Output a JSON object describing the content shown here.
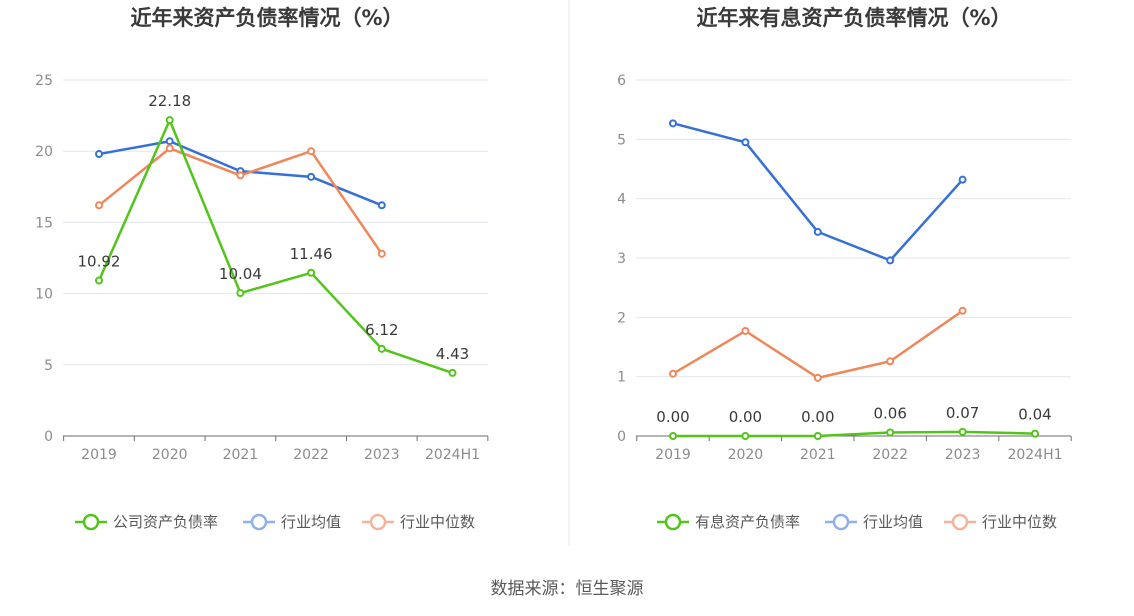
{
  "footer": {
    "source": "数据来源：恒生聚源"
  },
  "chart_data": [
    {
      "type": "line",
      "title": "近年来资产负债率情况（%）",
      "categories": [
        "2019",
        "2020",
        "2021",
        "2022",
        "2023",
        "2024H1"
      ],
      "ylim": [
        0,
        25
      ],
      "yticks": [
        0,
        5,
        10,
        15,
        20,
        25
      ],
      "grid": true,
      "legend_position": "bottom-center",
      "series": [
        {
          "name": "公司资产负债率",
          "color": "#52c41a",
          "show_labels": true,
          "values": [
            10.92,
            22.18,
            10.04,
            11.46,
            6.12,
            4.43
          ],
          "labels": [
            "10.92",
            "22.18",
            "10.04",
            "11.46",
            "6.12",
            "4.43"
          ]
        },
        {
          "name": "行业均值",
          "color": "#3470d8",
          "show_labels": false,
          "values": [
            19.8,
            20.7,
            18.6,
            18.2,
            16.2,
            null
          ]
        },
        {
          "name": "行业中位数",
          "color": "#f0875a",
          "show_labels": false,
          "values": [
            16.2,
            20.2,
            18.3,
            20.0,
            12.8,
            null
          ]
        }
      ]
    },
    {
      "type": "line",
      "title": "近年来有息资产负债率情况（%）",
      "categories": [
        "2019",
        "2020",
        "2021",
        "2022",
        "2023",
        "2024H1"
      ],
      "ylim": [
        0,
        6
      ],
      "yticks": [
        0,
        1,
        2,
        3,
        4,
        5,
        6
      ],
      "grid": true,
      "legend_position": "bottom-center",
      "series": [
        {
          "name": "有息资产负债率",
          "color": "#52c41a",
          "show_labels": true,
          "values": [
            0.0,
            0.0,
            0.0,
            0.06,
            0.07,
            0.04
          ],
          "labels": [
            "0.00",
            "0.00",
            "0.00",
            "0.06",
            "0.07",
            "0.04"
          ]
        },
        {
          "name": "行业均值",
          "color": "#3470d8",
          "show_labels": false,
          "values": [
            5.27,
            4.95,
            3.44,
            2.96,
            4.32,
            null
          ]
        },
        {
          "name": "行业中位数",
          "color": "#f0875a",
          "show_labels": false,
          "values": [
            1.05,
            1.77,
            0.98,
            1.26,
            2.11,
            null
          ]
        }
      ]
    }
  ]
}
